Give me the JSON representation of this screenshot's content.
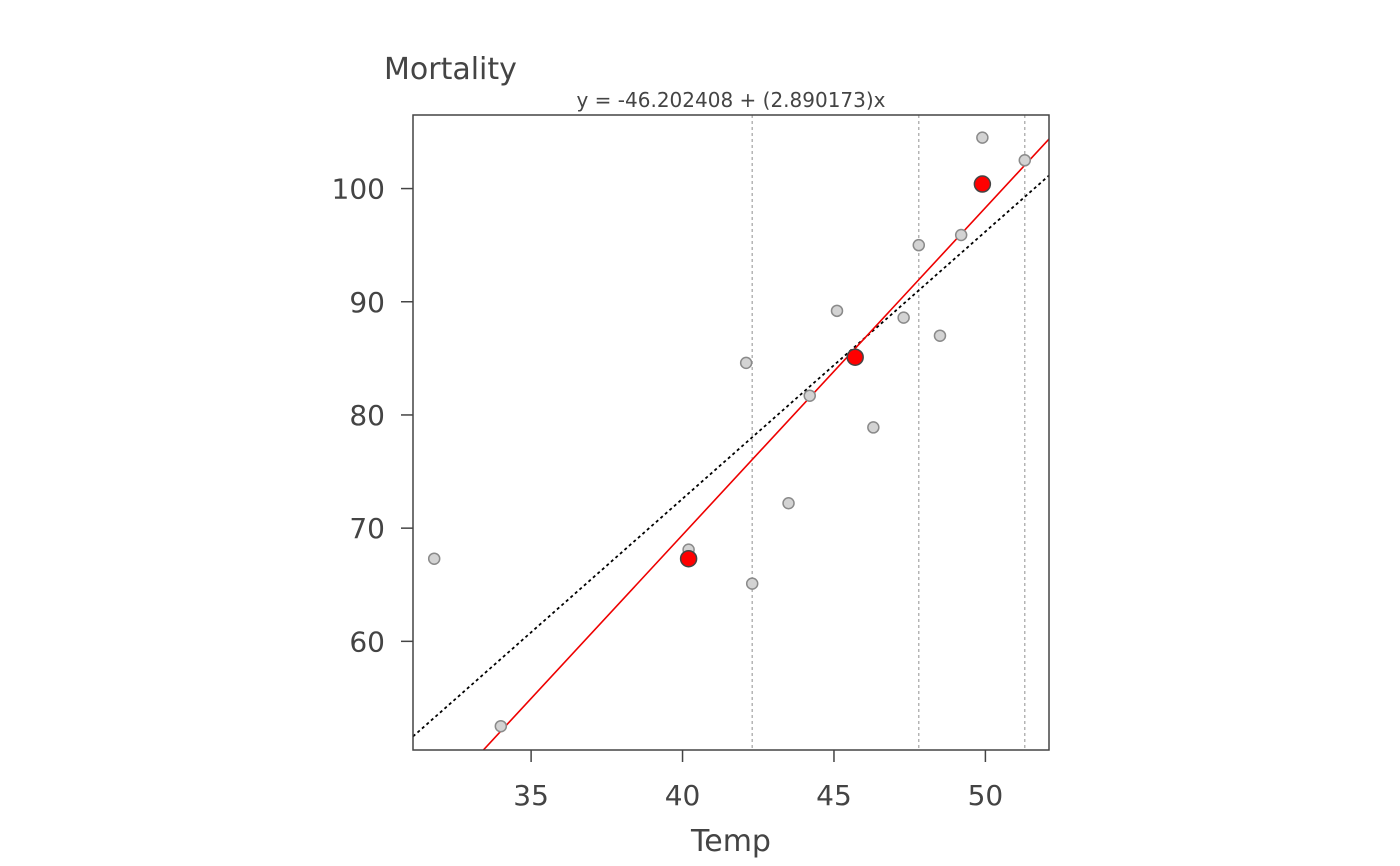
{
  "chart_data": {
    "type": "scatter",
    "title": "",
    "subtitle": "y = -46.202408 + (2.890173)x",
    "xlabel": "Temp",
    "ylabel": "Mortality",
    "xlim": [
      31.1,
      52.1
    ],
    "ylim": [
      50.4,
      106.5
    ],
    "x_ticks": [
      35,
      40,
      45,
      50
    ],
    "y_ticks": [
      60,
      70,
      80,
      90,
      100
    ],
    "grid": false,
    "points": [
      {
        "x": 31.8,
        "y": 67.3
      },
      {
        "x": 34.0,
        "y": 52.5
      },
      {
        "x": 40.2,
        "y": 68.1
      },
      {
        "x": 42.1,
        "y": 84.6
      },
      {
        "x": 42.3,
        "y": 65.1
      },
      {
        "x": 43.5,
        "y": 72.2
      },
      {
        "x": 44.2,
        "y": 81.7
      },
      {
        "x": 45.1,
        "y": 89.2
      },
      {
        "x": 46.3,
        "y": 78.9
      },
      {
        "x": 47.3,
        "y": 88.6
      },
      {
        "x": 47.8,
        "y": 95.0
      },
      {
        "x": 48.5,
        "y": 87.0
      },
      {
        "x": 49.2,
        "y": 95.9
      },
      {
        "x": 49.9,
        "y": 104.5
      },
      {
        "x": 51.3,
        "y": 102.5
      }
    ],
    "median_points": [
      {
        "x": 40.2,
        "y": 67.3
      },
      {
        "x": 45.7,
        "y": 85.1
      },
      {
        "x": 49.9,
        "y": 100.4
      }
    ],
    "vertical_lines": [
      42.3,
      47.8,
      51.3
    ],
    "resistant_line": {
      "intercept": -46.202408,
      "slope": 2.890173,
      "color": "#ee0000"
    },
    "ls_line": {
      "intercept": -21.8,
      "slope": 2.36,
      "color": "#000000"
    },
    "point_color": "#d3d3d3",
    "median_color": "#ff0000"
  }
}
